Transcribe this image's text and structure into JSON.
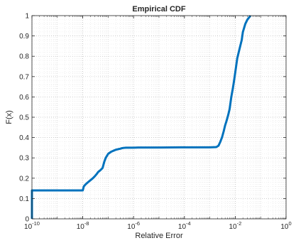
{
  "chart_data": {
    "type": "line",
    "title": "Empirical CDF",
    "xlabel": "Relative Error",
    "ylabel": "F(x)",
    "x_scale": "log",
    "xlim": [
      1e-10,
      1
    ],
    "ylim": [
      0,
      1
    ],
    "grid": true,
    "minor_grid": true,
    "x_ticks": [
      {
        "value": 1e-10,
        "base": "10",
        "exp": "-10"
      },
      {
        "value": 1e-08,
        "base": "10",
        "exp": "-8"
      },
      {
        "value": 1e-06,
        "base": "10",
        "exp": "-6"
      },
      {
        "value": 0.0001,
        "base": "10",
        "exp": "-4"
      },
      {
        "value": 0.01,
        "base": "10",
        "exp": "-2"
      },
      {
        "value": 1,
        "base": "10",
        "exp": "0"
      }
    ],
    "y_ticks": [
      {
        "value": 0,
        "label": "0"
      },
      {
        "value": 0.1,
        "label": "0.1"
      },
      {
        "value": 0.2,
        "label": "0.2"
      },
      {
        "value": 0.3,
        "label": "0.3"
      },
      {
        "value": 0.4,
        "label": "0.4"
      },
      {
        "value": 0.5,
        "label": "0.5"
      },
      {
        "value": 0.6,
        "label": "0.6"
      },
      {
        "value": 0.7,
        "label": "0.7"
      },
      {
        "value": 0.8,
        "label": "0.8"
      },
      {
        "value": 0.9,
        "label": "0.9"
      },
      {
        "value": 1,
        "label": "1"
      }
    ],
    "series": [
      {
        "color": "#0072bd",
        "x": [
          1e-10,
          1e-10,
          1.05e-10,
          1e-08,
          1.1e-08,
          1.3e-08,
          1.6e-08,
          2e-08,
          2.5e-08,
          3e-08,
          3.5e-08,
          4e-08,
          5e-08,
          6e-08,
          7e-08,
          8e-08,
          1e-07,
          1.3e-07,
          1.6e-07,
          2e-07,
          2.5e-07,
          3e-07,
          3.3e-07,
          3.6e-07,
          4e-07,
          5e-07,
          7e-07,
          1e-06,
          1.5e-06,
          1e-05,
          0.0001,
          0.001,
          0.0018,
          0.0022,
          0.0026,
          0.003,
          0.0035,
          0.004,
          0.0045,
          0.005,
          0.0055,
          0.006,
          0.007,
          0.008,
          0.009,
          0.01,
          0.012,
          0.015,
          0.018,
          0.02,
          0.025,
          0.03,
          0.04
        ],
        "y": [
          0,
          0.14,
          0.14,
          0.14,
          0.16,
          0.17,
          0.18,
          0.19,
          0.2,
          0.21,
          0.22,
          0.23,
          0.24,
          0.25,
          0.28,
          0.3,
          0.32,
          0.33,
          0.335,
          0.34,
          0.343,
          0.345,
          0.347,
          0.348,
          0.349,
          0.35,
          0.35,
          0.35,
          0.351,
          0.351,
          0.352,
          0.352,
          0.353,
          0.36,
          0.38,
          0.4,
          0.43,
          0.46,
          0.48,
          0.5,
          0.52,
          0.54,
          0.6,
          0.64,
          0.68,
          0.72,
          0.79,
          0.84,
          0.88,
          0.92,
          0.96,
          0.98,
          1.0
        ]
      }
    ]
  }
}
